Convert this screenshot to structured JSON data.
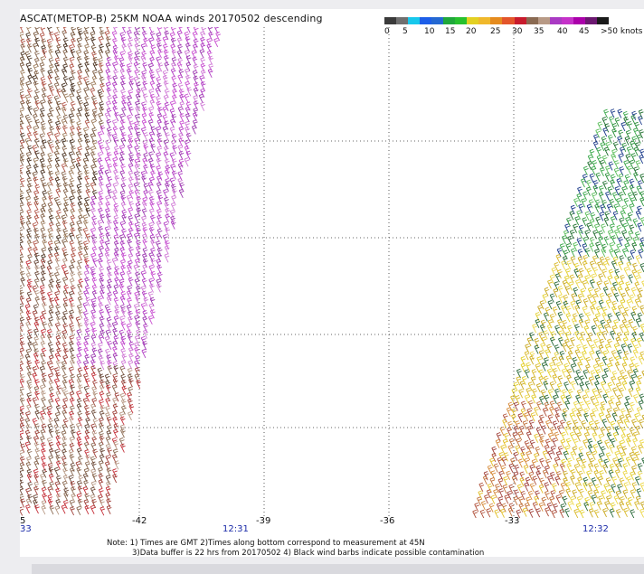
{
  "title": "ASCAT(METOP-B) 25KM NOAA winds 20170502 descending",
  "colorbar": {
    "labels": [
      "0",
      "5",
      "10",
      "15",
      "20",
      "25",
      "30",
      "35",
      "40",
      "45",
      ">50 knots"
    ],
    "colors": [
      "#3a3a3a",
      "#6f6f6f",
      "#17c8ec",
      "#1c5ee8",
      "#2468d2",
      "#1fa83a",
      "#27c12d",
      "#e3d022",
      "#f0b82b",
      "#e58b1e",
      "#e3552a",
      "#c81b2c",
      "#8a6a52",
      "#b89a86",
      "#a93ac3",
      "#c532c9",
      "#aa00aa",
      "#6b1870",
      "#1a1a1a"
    ]
  },
  "map": {
    "longitudes": [
      "-42",
      "-39",
      "-36",
      "-33"
    ],
    "times": [
      "12:31",
      "12:32"
    ],
    "left_edge_time_fragment": "33",
    "left_edge_lon_fragment": "5"
  },
  "note": {
    "line1": "Note: 1) Times are GMT 2)Times along bottom correspond to measurement at 45N",
    "line2": "3)Data buffer is 22 hrs from 20170502 4) Black wind barbs indicate possible contamination"
  }
}
